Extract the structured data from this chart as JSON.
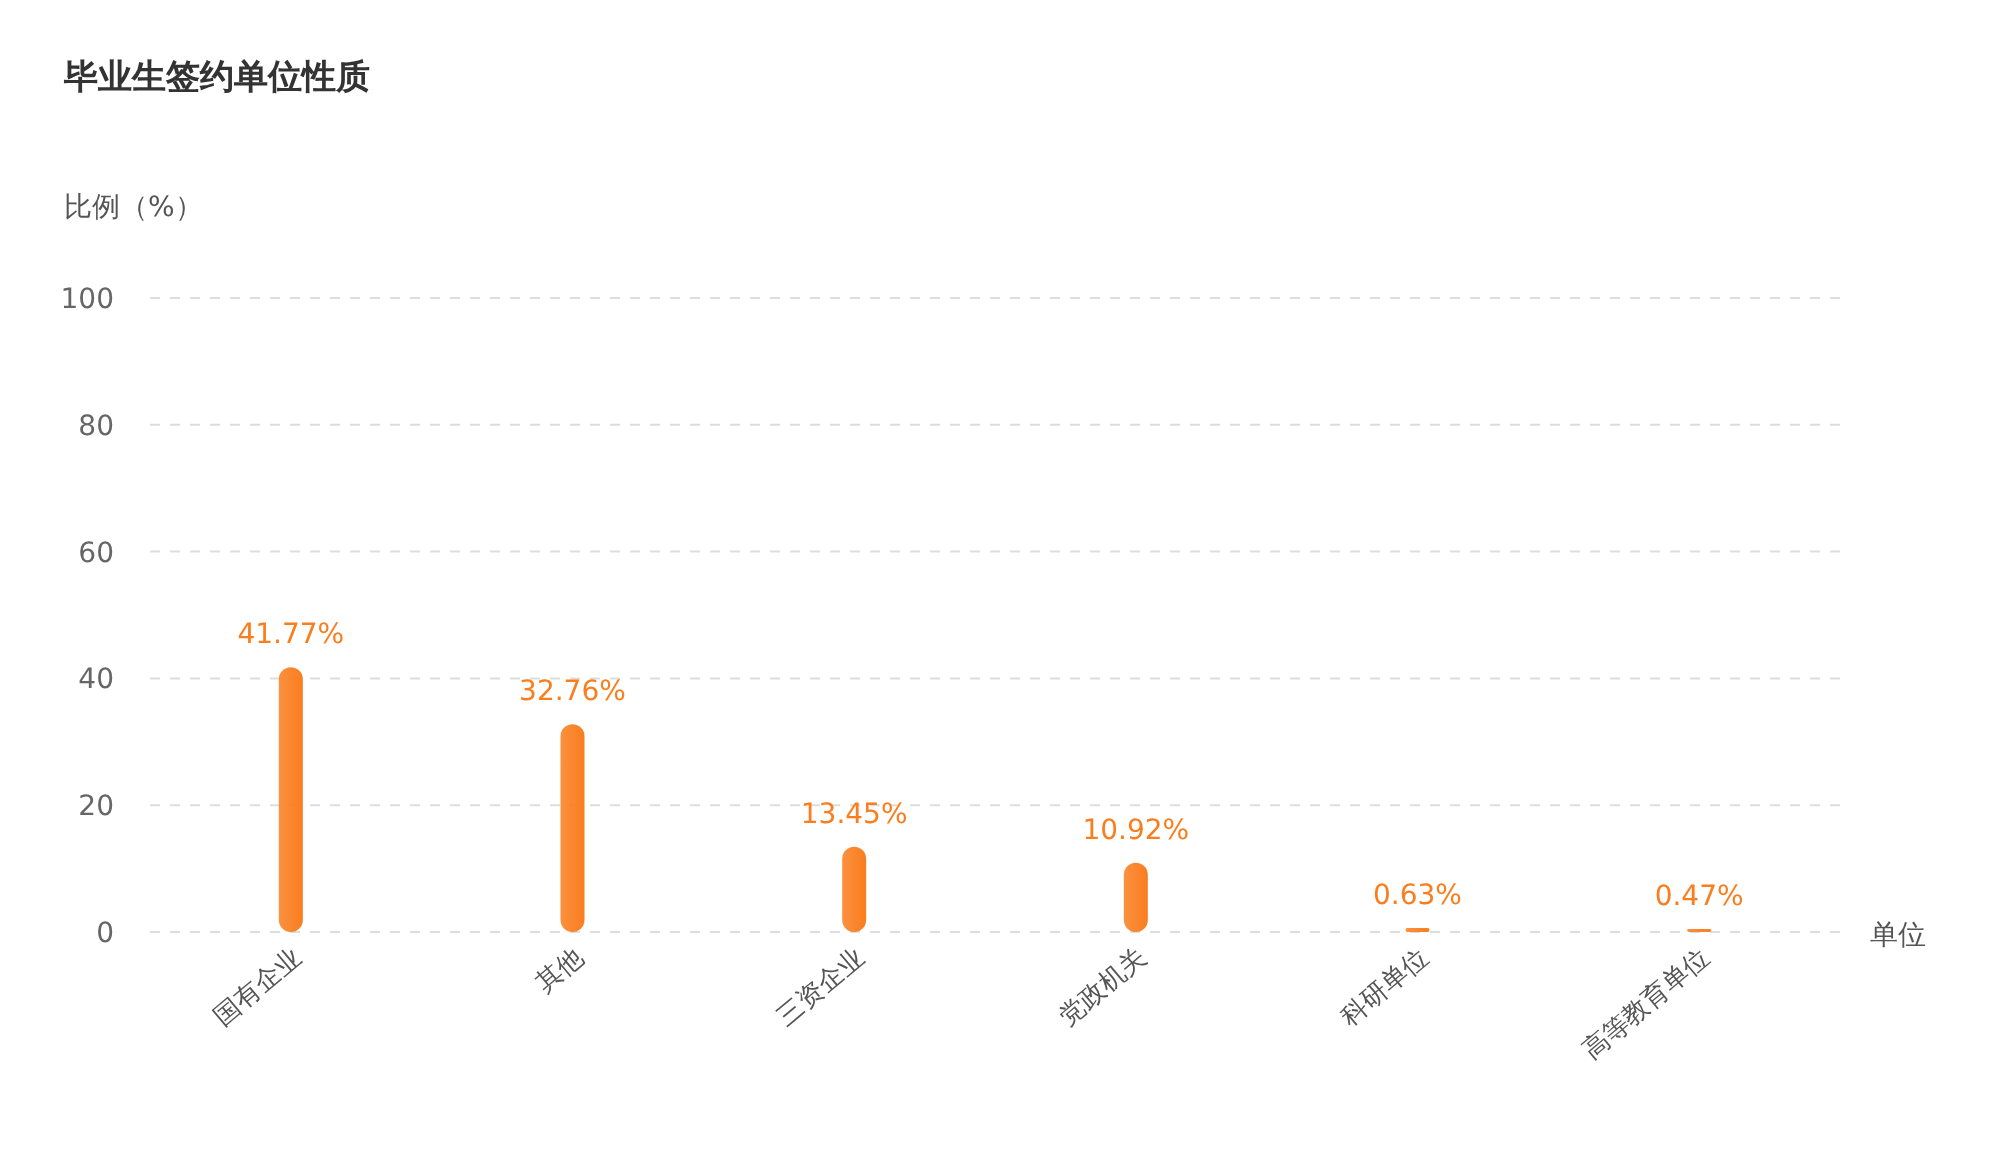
{
  "chart_data": {
    "type": "bar",
    "title": "毕业生签约单位性质",
    "ylabel": "比例（%）",
    "xlabel": "单位",
    "categories": [
      "国有企业",
      "其他",
      "三资企业",
      "党政机关",
      "科研单位",
      "高等教育单位"
    ],
    "values": [
      41.77,
      32.76,
      13.45,
      10.92,
      0.63,
      0.47
    ],
    "value_labels": [
      "41.77%",
      "32.76%",
      "13.45%",
      "10.92%",
      "0.63%",
      "0.47%"
    ],
    "color": "#fa7d1e",
    "ylim": [
      0,
      100
    ],
    "yticks": [
      0,
      20,
      40,
      60,
      80,
      100
    ],
    "grid": "y"
  }
}
